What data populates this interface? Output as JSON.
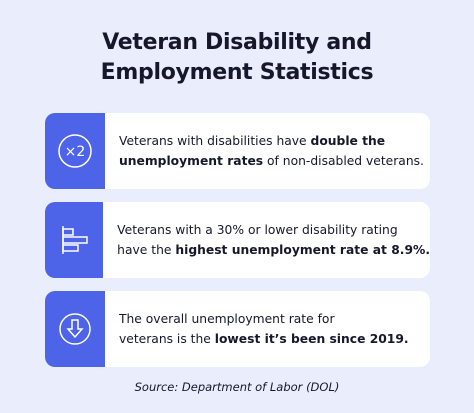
{
  "title": [
    "Veteran Disability and",
    "Employment Statistics"
  ],
  "cards": [
    {
      "icon_label": "×2",
      "lines": [
        [
          {
            "text": "Veterans with disabilities have ",
            "bold": false
          },
          {
            "text": "double the",
            "bold": true
          }
        ],
        [
          {
            "text": "unemployment rates",
            "bold": true
          },
          {
            "text": " of non-disabled veterans.",
            "bold": false
          }
        ]
      ]
    },
    {
      "lines": [
        [
          {
            "text": "Veterans with a 30% or lower disability rating",
            "bold": false
          }
        ],
        [
          {
            "text": "have the ",
            "bold": false
          },
          {
            "text": "highest unemployment rate at 8.9%.",
            "bold": true
          }
        ]
      ]
    },
    {
      "lines": [
        [
          {
            "text": "The overall unemployment rate for",
            "bold": false
          }
        ],
        [
          {
            "text": "veterans is the ",
            "bold": false
          },
          {
            "text": "lowest it’s been since 2019.",
            "bold": true
          }
        ]
      ]
    }
  ],
  "source": "Source: Department of Labor (DOL)"
}
